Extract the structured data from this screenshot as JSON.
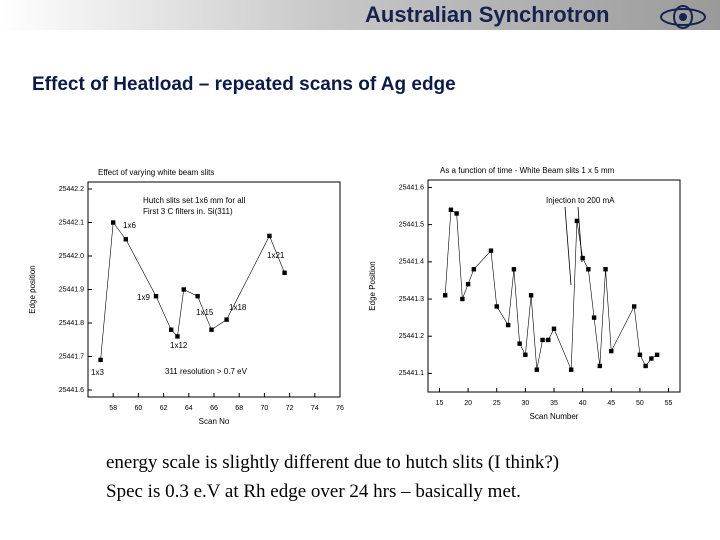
{
  "header": {
    "brand": "Australian Synchrotron"
  },
  "slide": {
    "title": "Effect of Heatload – repeated scans of Ag edge",
    "body": [
      "energy scale is slightly different due to hutch slits (I think?)",
      "Spec is 0.3 e.V at Rh edge over 24 hrs – basically met."
    ]
  },
  "chart_data": [
    {
      "type": "line",
      "title": "Effect of varying white beam slits",
      "x_label": "Scan No",
      "y_label": "Edge position",
      "x": [
        57,
        58,
        59,
        61.4,
        62.6,
        63.1,
        63.6,
        64.7,
        65.8,
        67,
        70.4,
        71.6
      ],
      "values": [
        25441.69,
        25442.1,
        25442.05,
        25441.88,
        25441.78,
        25441.76,
        25441.9,
        25441.88,
        25441.78,
        25441.81,
        25442.06,
        25441.95
      ],
      "color": "#000000",
      "xlim": [
        56,
        76
      ],
      "xticks": [
        58,
        60,
        62,
        64,
        66,
        68,
        70,
        72,
        74,
        76
      ],
      "ylim": [
        25441.6,
        25442.2
      ],
      "yticks": [
        25441.6,
        25441.7,
        25441.8,
        25441.9,
        {
          "value": 25442,
          "label": "25442.0"
        },
        25442.1,
        25442.2
      ],
      "annotations": [
        "Hutch slits set 1x6 mm for all",
        "First 3 C filters in.  Si(311)",
        "311 resolution > 0.7 eV",
        "1x3",
        "1x6",
        "1x9",
        "1x12",
        "1x15",
        "1x18",
        "1x21"
      ]
    },
    {
      "type": "line",
      "title": "As a function of time - White Beam slits 1 x 5 mm",
      "x_label": "Scan Number",
      "y_label": "Edge Position",
      "x": [
        16,
        17,
        18,
        19,
        20,
        21,
        24,
        25,
        27,
        28,
        29,
        30,
        31,
        32,
        33,
        34,
        35,
        38,
        39,
        40,
        41,
        42,
        43,
        44,
        45,
        49,
        50,
        51,
        52,
        53
      ],
      "values": [
        25441.31,
        25441.54,
        25441.53,
        25441.3,
        25441.34,
        25441.38,
        25441.43,
        25441.28,
        25441.23,
        25441.38,
        25441.18,
        25441.15,
        25441.31,
        25441.11,
        25441.19,
        25441.19,
        25441.22,
        25441.11,
        25441.51,
        25441.41,
        25441.38,
        25441.25,
        25441.12,
        25441.38,
        25441.16,
        25441.28,
        25441.15,
        25441.12,
        25441.14,
        25441.15
      ],
      "color": "#000000",
      "xlim": [
        13,
        57
      ],
      "xticks": [
        15,
        20,
        25,
        30,
        35,
        40,
        45,
        50,
        55
      ],
      "ylim": [
        25441.05,
        25441.62
      ],
      "yticks": [
        25441.1,
        25441.2,
        25441.3,
        25441.4,
        25441.5,
        25441.6
      ],
      "annotations": [
        "Injection to 200 mA"
      ]
    }
  ]
}
